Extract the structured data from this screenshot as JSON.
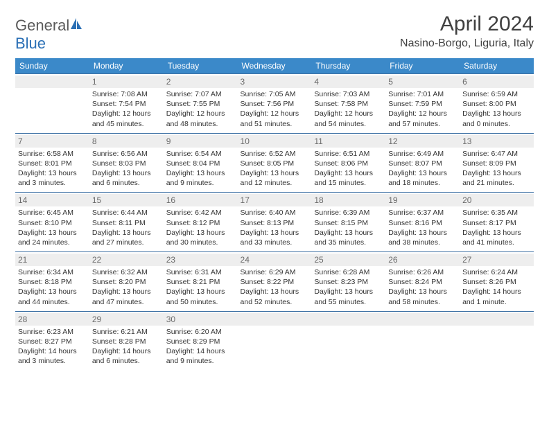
{
  "logo": {
    "text1": "General",
    "text2": "Blue"
  },
  "title": "April 2024",
  "location": "Nasino-Borgo, Liguria, Italy",
  "header_bg": "#3b89c9",
  "daynum_bg": "#eeeeee",
  "row_border": "#3b6fa3",
  "text_color": "#333333",
  "font_size_info": 10.5,
  "days": [
    "Sunday",
    "Monday",
    "Tuesday",
    "Wednesday",
    "Thursday",
    "Friday",
    "Saturday"
  ],
  "weeks": [
    [
      null,
      {
        "n": "1",
        "sr": "Sunrise: 7:08 AM",
        "ss": "Sunset: 7:54 PM",
        "dl": "Daylight: 12 hours and 45 minutes."
      },
      {
        "n": "2",
        "sr": "Sunrise: 7:07 AM",
        "ss": "Sunset: 7:55 PM",
        "dl": "Daylight: 12 hours and 48 minutes."
      },
      {
        "n": "3",
        "sr": "Sunrise: 7:05 AM",
        "ss": "Sunset: 7:56 PM",
        "dl": "Daylight: 12 hours and 51 minutes."
      },
      {
        "n": "4",
        "sr": "Sunrise: 7:03 AM",
        "ss": "Sunset: 7:58 PM",
        "dl": "Daylight: 12 hours and 54 minutes."
      },
      {
        "n": "5",
        "sr": "Sunrise: 7:01 AM",
        "ss": "Sunset: 7:59 PM",
        "dl": "Daylight: 12 hours and 57 minutes."
      },
      {
        "n": "6",
        "sr": "Sunrise: 6:59 AM",
        "ss": "Sunset: 8:00 PM",
        "dl": "Daylight: 13 hours and 0 minutes."
      }
    ],
    [
      {
        "n": "7",
        "sr": "Sunrise: 6:58 AM",
        "ss": "Sunset: 8:01 PM",
        "dl": "Daylight: 13 hours and 3 minutes."
      },
      {
        "n": "8",
        "sr": "Sunrise: 6:56 AM",
        "ss": "Sunset: 8:03 PM",
        "dl": "Daylight: 13 hours and 6 minutes."
      },
      {
        "n": "9",
        "sr": "Sunrise: 6:54 AM",
        "ss": "Sunset: 8:04 PM",
        "dl": "Daylight: 13 hours and 9 minutes."
      },
      {
        "n": "10",
        "sr": "Sunrise: 6:52 AM",
        "ss": "Sunset: 8:05 PM",
        "dl": "Daylight: 13 hours and 12 minutes."
      },
      {
        "n": "11",
        "sr": "Sunrise: 6:51 AM",
        "ss": "Sunset: 8:06 PM",
        "dl": "Daylight: 13 hours and 15 minutes."
      },
      {
        "n": "12",
        "sr": "Sunrise: 6:49 AM",
        "ss": "Sunset: 8:07 PM",
        "dl": "Daylight: 13 hours and 18 minutes."
      },
      {
        "n": "13",
        "sr": "Sunrise: 6:47 AM",
        "ss": "Sunset: 8:09 PM",
        "dl": "Daylight: 13 hours and 21 minutes."
      }
    ],
    [
      {
        "n": "14",
        "sr": "Sunrise: 6:45 AM",
        "ss": "Sunset: 8:10 PM",
        "dl": "Daylight: 13 hours and 24 minutes."
      },
      {
        "n": "15",
        "sr": "Sunrise: 6:44 AM",
        "ss": "Sunset: 8:11 PM",
        "dl": "Daylight: 13 hours and 27 minutes."
      },
      {
        "n": "16",
        "sr": "Sunrise: 6:42 AM",
        "ss": "Sunset: 8:12 PM",
        "dl": "Daylight: 13 hours and 30 minutes."
      },
      {
        "n": "17",
        "sr": "Sunrise: 6:40 AM",
        "ss": "Sunset: 8:13 PM",
        "dl": "Daylight: 13 hours and 33 minutes."
      },
      {
        "n": "18",
        "sr": "Sunrise: 6:39 AM",
        "ss": "Sunset: 8:15 PM",
        "dl": "Daylight: 13 hours and 35 minutes."
      },
      {
        "n": "19",
        "sr": "Sunrise: 6:37 AM",
        "ss": "Sunset: 8:16 PM",
        "dl": "Daylight: 13 hours and 38 minutes."
      },
      {
        "n": "20",
        "sr": "Sunrise: 6:35 AM",
        "ss": "Sunset: 8:17 PM",
        "dl": "Daylight: 13 hours and 41 minutes."
      }
    ],
    [
      {
        "n": "21",
        "sr": "Sunrise: 6:34 AM",
        "ss": "Sunset: 8:18 PM",
        "dl": "Daylight: 13 hours and 44 minutes."
      },
      {
        "n": "22",
        "sr": "Sunrise: 6:32 AM",
        "ss": "Sunset: 8:20 PM",
        "dl": "Daylight: 13 hours and 47 minutes."
      },
      {
        "n": "23",
        "sr": "Sunrise: 6:31 AM",
        "ss": "Sunset: 8:21 PM",
        "dl": "Daylight: 13 hours and 50 minutes."
      },
      {
        "n": "24",
        "sr": "Sunrise: 6:29 AM",
        "ss": "Sunset: 8:22 PM",
        "dl": "Daylight: 13 hours and 52 minutes."
      },
      {
        "n": "25",
        "sr": "Sunrise: 6:28 AM",
        "ss": "Sunset: 8:23 PM",
        "dl": "Daylight: 13 hours and 55 minutes."
      },
      {
        "n": "26",
        "sr": "Sunrise: 6:26 AM",
        "ss": "Sunset: 8:24 PM",
        "dl": "Daylight: 13 hours and 58 minutes."
      },
      {
        "n": "27",
        "sr": "Sunrise: 6:24 AM",
        "ss": "Sunset: 8:26 PM",
        "dl": "Daylight: 14 hours and 1 minute."
      }
    ],
    [
      {
        "n": "28",
        "sr": "Sunrise: 6:23 AM",
        "ss": "Sunset: 8:27 PM",
        "dl": "Daylight: 14 hours and 3 minutes."
      },
      {
        "n": "29",
        "sr": "Sunrise: 6:21 AM",
        "ss": "Sunset: 8:28 PM",
        "dl": "Daylight: 14 hours and 6 minutes."
      },
      {
        "n": "30",
        "sr": "Sunrise: 6:20 AM",
        "ss": "Sunset: 8:29 PM",
        "dl": "Daylight: 14 hours and 9 minutes."
      },
      null,
      null,
      null,
      null
    ]
  ]
}
